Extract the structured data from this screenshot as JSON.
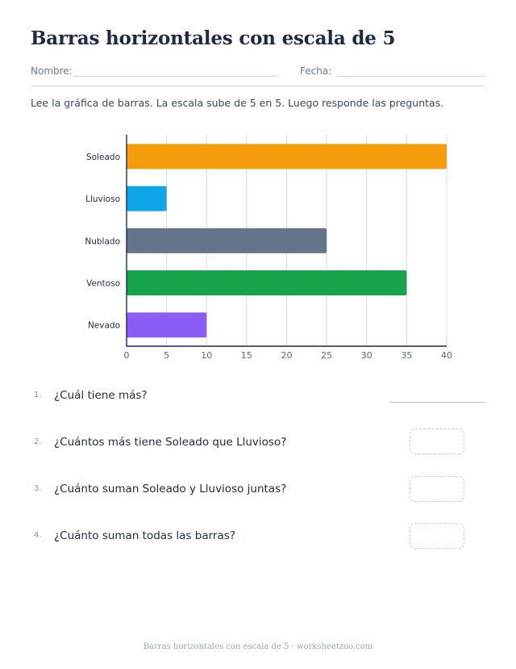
{
  "worksheet": {
    "title": "Barras horizontales con escala de 5",
    "name_label": "Nombre:",
    "date_label": "Fecha:",
    "instructions": "Lee la gráfica de barras. La escala sube de 5 en 5. Luego responde las preguntas."
  },
  "chart_data": {
    "type": "bar",
    "orientation": "horizontal",
    "categories": [
      "Soleado",
      "Lluvioso",
      "Nublado",
      "Ventoso",
      "Nevado"
    ],
    "values": [
      40,
      5,
      25,
      35,
      10
    ],
    "colors": [
      "#f59e0b",
      "#0ea5e9",
      "#64748b",
      "#16a34a",
      "#8b5cf6"
    ],
    "xlim": [
      0,
      40
    ],
    "xticks": [
      0,
      5,
      10,
      15,
      20,
      25,
      30,
      35,
      40
    ],
    "grid": true,
    "title": "",
    "xlabel": "",
    "ylabel": ""
  },
  "questions": [
    {
      "number": "1.",
      "text": "¿Cuál tiene más?"
    },
    {
      "number": "2.",
      "text": "¿Cuántos más tiene Soleado que Lluvioso?"
    },
    {
      "number": "3.",
      "text": "¿Cuánto suman Soleado y Lluvioso juntas?"
    },
    {
      "number": "4.",
      "text": "¿Cuánto suman todas las barras?"
    }
  ],
  "footer": "Barras horizontales con escala de 5 · worksheetzoo.com"
}
